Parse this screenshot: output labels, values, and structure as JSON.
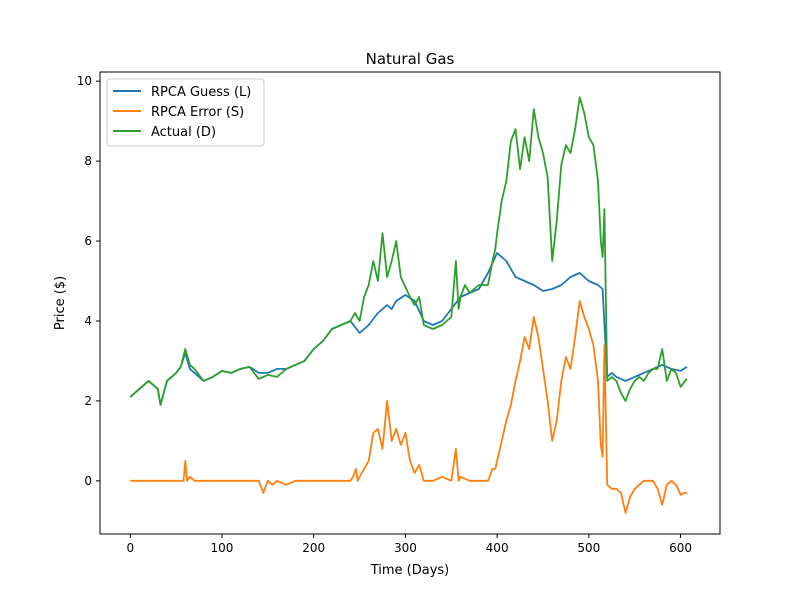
{
  "chart_data": {
    "type": "line",
    "title": "Natural Gas",
    "xlabel": "Time (Days)",
    "ylabel": "Price ($)",
    "xlim": [
      -33,
      643
    ],
    "ylim": [
      -1.33,
      10.23
    ],
    "xticks": [
      0,
      100,
      200,
      300,
      400,
      500,
      600
    ],
    "yticks": [
      0,
      2,
      4,
      6,
      8,
      10
    ],
    "grid": false,
    "legend_position": "top-left",
    "colors": {
      "L": "#1f77b4",
      "S": "#ff7f0e",
      "D": "#2ca02c"
    },
    "series": [
      {
        "key": "L",
        "name": "RPCA Guess (L)",
        "x": [
          0,
          10,
          20,
          30,
          33,
          40,
          50,
          55,
          60,
          65,
          70,
          80,
          90,
          100,
          110,
          120,
          130,
          140,
          150,
          160,
          170,
          180,
          190,
          200,
          210,
          220,
          230,
          240,
          250,
          260,
          270,
          280,
          285,
          290,
          300,
          310,
          320,
          330,
          340,
          350,
          360,
          380,
          390,
          400,
          410,
          420,
          430,
          440,
          450,
          460,
          470,
          480,
          490,
          500,
          510,
          515,
          520,
          525,
          530,
          540,
          550,
          560,
          570,
          580,
          590,
          600,
          607
        ],
        "y": [
          2.1,
          2.3,
          2.5,
          2.3,
          1.9,
          2.5,
          2.7,
          2.85,
          3.2,
          2.8,
          2.7,
          2.5,
          2.6,
          2.75,
          2.7,
          2.8,
          2.85,
          2.7,
          2.7,
          2.8,
          2.8,
          2.9,
          3.0,
          3.3,
          3.5,
          3.8,
          3.9,
          4.0,
          3.7,
          3.9,
          4.2,
          4.4,
          4.3,
          4.5,
          4.65,
          4.5,
          4.0,
          3.9,
          4.0,
          4.3,
          4.6,
          4.8,
          5.2,
          5.7,
          5.5,
          5.1,
          5.0,
          4.9,
          4.75,
          4.8,
          4.9,
          5.1,
          5.2,
          5.0,
          4.9,
          4.8,
          2.6,
          2.7,
          2.6,
          2.5,
          2.6,
          2.7,
          2.8,
          2.9,
          2.8,
          2.75,
          2.85
        ]
      },
      {
        "key": "S",
        "name": "RPCA Error (S)",
        "x": [
          0,
          58,
          60,
          62,
          65,
          70,
          140,
          145,
          150,
          155,
          160,
          170,
          180,
          190,
          200,
          220,
          240,
          243,
          246,
          248,
          250,
          255,
          260,
          265,
          270,
          275,
          280,
          285,
          290,
          295,
          300,
          305,
          310,
          315,
          320,
          325,
          330,
          340,
          350,
          355,
          358,
          360,
          370,
          380,
          390,
          395,
          398,
          400,
          405,
          410,
          415,
          420,
          425,
          430,
          435,
          440,
          445,
          450,
          455,
          460,
          465,
          470,
          475,
          480,
          485,
          490,
          495,
          500,
          505,
          510,
          513,
          515,
          517,
          520,
          525,
          530,
          535,
          540,
          545,
          550,
          555,
          560,
          570,
          575,
          580,
          585,
          590,
          595,
          600,
          605,
          607
        ],
        "y": [
          0,
          0,
          0.5,
          0,
          0.1,
          0,
          0,
          -0.3,
          0,
          -0.1,
          0,
          -0.1,
          0,
          0,
          0,
          0,
          0,
          0.1,
          0.3,
          0,
          0.1,
          0.3,
          0.5,
          1.2,
          1.3,
          0.8,
          2.0,
          1.0,
          1.3,
          0.9,
          1.2,
          0.5,
          0.2,
          0.4,
          0,
          0,
          0,
          0.1,
          0,
          0.8,
          0,
          0.1,
          0,
          0,
          0,
          0.3,
          0.3,
          0.5,
          1.0,
          1.5,
          1.9,
          2.5,
          3.0,
          3.6,
          3.3,
          4.1,
          3.6,
          2.8,
          2.0,
          1.0,
          1.5,
          2.5,
          3.1,
          2.8,
          3.6,
          4.5,
          4.1,
          3.8,
          3.4,
          2.5,
          0.9,
          0.6,
          3.4,
          -0.1,
          -0.2,
          -0.2,
          -0.3,
          -0.8,
          -0.4,
          -0.2,
          -0.1,
          0,
          0,
          -0.2,
          -0.6,
          -0.1,
          0,
          -0.1,
          -0.35,
          -0.3,
          -0.3
        ]
      },
      {
        "key": "D",
        "name": "Actual (D)",
        "x": [
          0,
          10,
          20,
          30,
          33,
          40,
          50,
          55,
          60,
          65,
          70,
          80,
          90,
          100,
          110,
          120,
          130,
          140,
          150,
          160,
          170,
          180,
          190,
          200,
          210,
          220,
          230,
          240,
          245,
          250,
          255,
          260,
          265,
          270,
          275,
          280,
          285,
          290,
          295,
          300,
          305,
          310,
          315,
          320,
          330,
          340,
          350,
          355,
          358,
          360,
          365,
          370,
          380,
          390,
          395,
          398,
          400,
          405,
          410,
          415,
          420,
          425,
          430,
          435,
          440,
          445,
          450,
          455,
          460,
          465,
          470,
          475,
          480,
          485,
          490,
          495,
          500,
          505,
          510,
          513,
          515,
          517,
          520,
          525,
          530,
          535,
          540,
          545,
          550,
          555,
          560,
          565,
          570,
          575,
          580,
          585,
          590,
          595,
          600,
          605,
          607
        ],
        "y": [
          2.1,
          2.3,
          2.5,
          2.3,
          1.9,
          2.5,
          2.7,
          2.85,
          3.3,
          2.9,
          2.8,
          2.5,
          2.6,
          2.75,
          2.7,
          2.8,
          2.85,
          2.55,
          2.65,
          2.6,
          2.8,
          2.9,
          3.0,
          3.3,
          3.5,
          3.8,
          3.9,
          4.0,
          4.2,
          4.0,
          4.6,
          4.9,
          5.5,
          5.0,
          6.2,
          5.1,
          5.5,
          6.0,
          5.1,
          4.85,
          4.6,
          4.4,
          4.6,
          3.9,
          3.8,
          3.9,
          4.1,
          5.5,
          4.3,
          4.6,
          4.9,
          4.7,
          4.9,
          4.9,
          5.5,
          5.8,
          6.2,
          7.0,
          7.5,
          8.5,
          8.8,
          7.8,
          8.6,
          8.0,
          9.3,
          8.6,
          8.2,
          7.6,
          5.5,
          6.5,
          7.9,
          8.4,
          8.2,
          8.8,
          9.6,
          9.2,
          8.6,
          8.4,
          7.5,
          6.0,
          5.6,
          6.8,
          2.5,
          2.6,
          2.5,
          2.2,
          2.0,
          2.3,
          2.5,
          2.6,
          2.5,
          2.7,
          2.8,
          2.8,
          3.3,
          2.5,
          2.8,
          2.7,
          2.35,
          2.5,
          2.55
        ]
      }
    ]
  }
}
